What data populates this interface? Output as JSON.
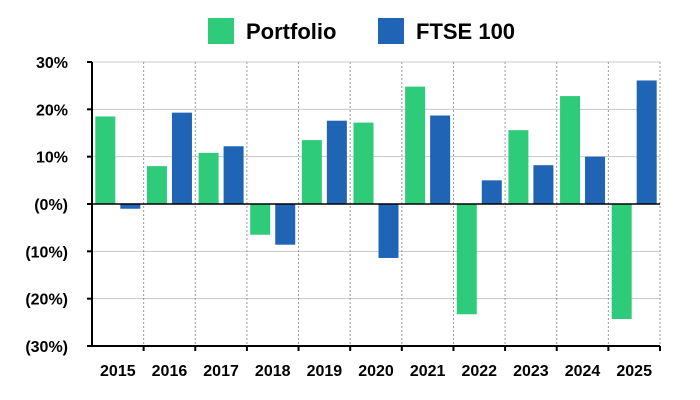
{
  "chart_data": {
    "type": "bar",
    "title": "",
    "xlabel": "",
    "ylabel": "",
    "categories": [
      "2015",
      "2016",
      "2017",
      "2018",
      "2019",
      "2020",
      "2021",
      "2022",
      "2023",
      "2024",
      "2025"
    ],
    "series": [
      {
        "name": "Portfolio",
        "color": "#2ecc7a",
        "values": [
          18.5,
          8.0,
          10.8,
          -6.5,
          13.5,
          17.2,
          24.8,
          -23.3,
          15.6,
          22.8,
          -24.3
        ]
      },
      {
        "name": "FTSE 100",
        "color": "#1f64b5",
        "values": [
          -1.0,
          19.3,
          12.2,
          -8.6,
          17.6,
          -11.4,
          18.7,
          5.0,
          8.2,
          10.0,
          26.1
        ]
      }
    ],
    "ylim": [
      -30,
      30
    ],
    "yticks": [
      30,
      20,
      10,
      0,
      -10,
      -20,
      -30
    ],
    "ytick_labels": [
      "30%",
      "20%",
      "10%",
      "(0%)",
      "(10%)",
      "(20%)",
      "(30%)"
    ],
    "grid": true,
    "legend_position": "top-center"
  }
}
